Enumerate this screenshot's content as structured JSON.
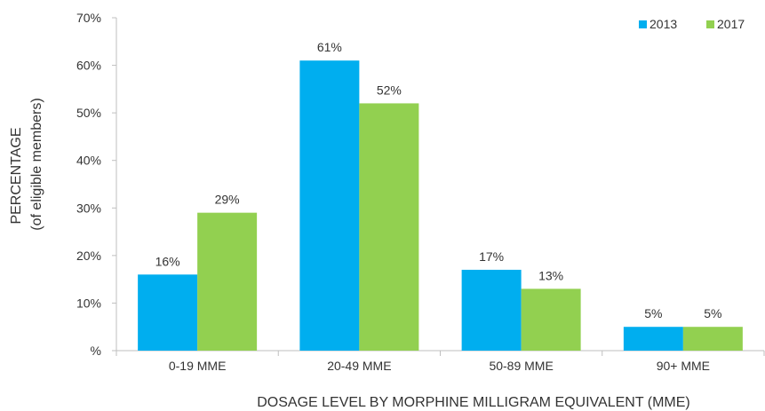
{
  "chart_data": {
    "type": "bar",
    "categories": [
      "0-19 MME",
      "20-49 MME",
      "50-89 MME",
      "90+ MME"
    ],
    "series": [
      {
        "name": "2013",
        "values": [
          16,
          61,
          17,
          5
        ],
        "labels": [
          "16%",
          "61%",
          "17%",
          "5%"
        ]
      },
      {
        "name": "2017",
        "values": [
          29,
          52,
          13,
          5
        ],
        "labels": [
          "29%",
          "52%",
          "13%",
          "5%"
        ]
      }
    ],
    "colors": {
      "2013": "#00aeef",
      "2017": "#92d050"
    },
    "ylabel_line1": "PERCENTAGE",
    "ylabel_line2": "(of eligible members)",
    "xlabel": "DOSAGE LEVEL BY MORPHINE MILLIGRAM EQUIVALENT (MME)",
    "ylim": [
      0,
      70
    ],
    "yticks": [
      0,
      10,
      20,
      30,
      40,
      50,
      60,
      70
    ],
    "ytick_labels": [
      "%",
      "10%",
      "20%",
      "30%",
      "40%",
      "50%",
      "60%",
      "70%"
    ],
    "legend_position": "top-right",
    "grid": false
  }
}
